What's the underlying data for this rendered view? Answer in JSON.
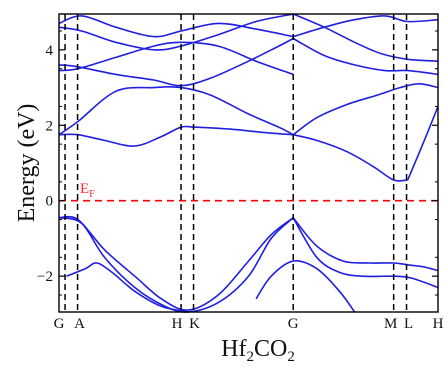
{
  "chart_data": {
    "type": "line",
    "title": "",
    "xlabel": "Hf2CO2",
    "xlabel_parts": {
      "base": "Hf",
      "sub1": "2",
      "mid": "CO",
      "sub2": "2"
    },
    "ylabel": "Energy (eV)",
    "ylim": [
      -2.95,
      4.95
    ],
    "yticks": [
      -2,
      0,
      2,
      4
    ],
    "xlim": [
      0,
      1
    ],
    "kpoints": [
      {
        "label": "G",
        "x": 0.016
      },
      {
        "label": "A",
        "x": 0.049
      },
      {
        "label": "H",
        "x": 0.322
      },
      {
        "label": "K",
        "x": 0.355
      },
      {
        "label": "G",
        "x": 0.618
      },
      {
        "label": "M",
        "x": 0.883
      },
      {
        "label": "L",
        "x": 0.917
      },
      {
        "label": "H",
        "x": 1.0
      }
    ],
    "fermi_level": {
      "label": "EF",
      "label_base": "E",
      "label_sub": "F",
      "energy": 0,
      "color": "#ff0000"
    },
    "band_color": "#1f1fe0",
    "series": [
      {
        "x": [
          0,
          0.05,
          0.12,
          0.2,
          0.27,
          0.34,
          0.42,
          0.5,
          0.56,
          0.618
        ],
        "values": [
          -0.45,
          -0.5,
          -1.3,
          -2.0,
          -2.6,
          -2.9,
          -2.5,
          -1.6,
          -0.9,
          -0.45
        ]
      },
      {
        "x": [
          0,
          0.06,
          0.12,
          0.2,
          0.28,
          0.34,
          0.42,
          0.5,
          0.56,
          0.618
        ],
        "values": [
          -0.45,
          -0.6,
          -1.5,
          -2.3,
          -2.8,
          -2.95,
          -2.7,
          -2.0,
          -1.0,
          -0.45
        ]
      },
      {
        "x": [
          0.02,
          0.07,
          0.1,
          0.14,
          0.2,
          0.27,
          0.34
        ],
        "values": [
          -2.0,
          -1.8,
          -1.65,
          -1.9,
          -2.4,
          -2.8,
          -2.95
        ]
      },
      {
        "x": [
          0.618,
          0.68,
          0.75,
          0.82,
          0.883,
          0.92,
          0.96,
          1.0
        ],
        "values": [
          -0.45,
          -1.2,
          -1.6,
          -1.65,
          -1.65,
          -1.7,
          -1.75,
          -1.85
        ]
      },
      {
        "x": [
          0.618,
          0.68,
          0.74,
          0.8,
          0.883,
          0.93,
          1.0
        ],
        "values": [
          -0.45,
          -1.5,
          -1.9,
          -2.0,
          -2.0,
          -2.05,
          -2.3
        ]
      },
      {
        "x": [
          0.52,
          0.56,
          0.618,
          0.68,
          0.74,
          0.78
        ],
        "values": [
          -2.6,
          -2.0,
          -1.6,
          -1.8,
          -2.4,
          -2.95
        ]
      },
      {
        "x": [
          0,
          0.05,
          0.12,
          0.2,
          0.27,
          0.322,
          0.36,
          0.45,
          0.55,
          0.618
        ],
        "values": [
          1.75,
          1.75,
          1.6,
          1.45,
          1.7,
          1.95,
          1.95,
          1.9,
          1.8,
          1.75
        ]
      },
      {
        "x": [
          0,
          0.05,
          0.15,
          0.25,
          0.322,
          0.4,
          0.5,
          0.58,
          0.618
        ],
        "values": [
          1.75,
          2.1,
          2.9,
          3.0,
          3.0,
          2.8,
          2.3,
          1.95,
          1.75
        ]
      },
      {
        "x": [
          0.618,
          0.68,
          0.76,
          0.83,
          0.883,
          0.92
        ],
        "values": [
          1.75,
          1.6,
          1.3,
          0.9,
          0.55,
          0.55
        ]
      },
      {
        "x": [
          0.618,
          0.68,
          0.76,
          0.84,
          0.9,
          0.95,
          1.0
        ],
        "values": [
          1.75,
          2.2,
          2.55,
          2.8,
          3.0,
          3.1,
          3.0
        ]
      },
      {
        "x": [
          0.92,
          0.96,
          1.0
        ],
        "values": [
          0.55,
          1.5,
          2.5
        ]
      },
      {
        "x": [
          0,
          0.05,
          0.15,
          0.25,
          0.322,
          0.4,
          0.5,
          0.58,
          0.618
        ],
        "values": [
          3.6,
          3.55,
          3.35,
          3.2,
          3.05,
          3.25,
          3.7,
          4.1,
          4.3
        ]
      },
      {
        "x": [
          0,
          0.05,
          0.15,
          0.25,
          0.322,
          0.42,
          0.52,
          0.618
        ],
        "values": [
          3.45,
          3.5,
          3.8,
          4.1,
          4.2,
          4.1,
          3.7,
          3.35
        ]
      },
      {
        "x": [
          0,
          0.06,
          0.15,
          0.25,
          0.322,
          0.42,
          0.52,
          0.618
        ],
        "values": [
          4.6,
          4.5,
          4.2,
          4.0,
          4.1,
          4.4,
          4.75,
          4.95
        ]
      },
      {
        "x": [
          0,
          0.06,
          0.15,
          0.25,
          0.322,
          0.42,
          0.52,
          0.618
        ],
        "values": [
          4.7,
          4.9,
          4.6,
          4.35,
          4.5,
          4.7,
          4.55,
          4.35
        ]
      },
      {
        "x": [
          0.618,
          0.7,
          0.78,
          0.86,
          0.92,
          1.0
        ],
        "values": [
          4.3,
          3.85,
          3.6,
          3.45,
          3.45,
          3.35
        ]
      },
      {
        "x": [
          0.618,
          0.7,
          0.78,
          0.85,
          0.92,
          1.0
        ],
        "values": [
          4.95,
          4.6,
          4.2,
          3.9,
          3.75,
          3.7
        ]
      },
      {
        "x": [
          0.618,
          0.7,
          0.78,
          0.86,
          0.92,
          1.0
        ],
        "values": [
          4.35,
          4.6,
          4.8,
          4.9,
          4.75,
          4.8
        ]
      }
    ]
  }
}
